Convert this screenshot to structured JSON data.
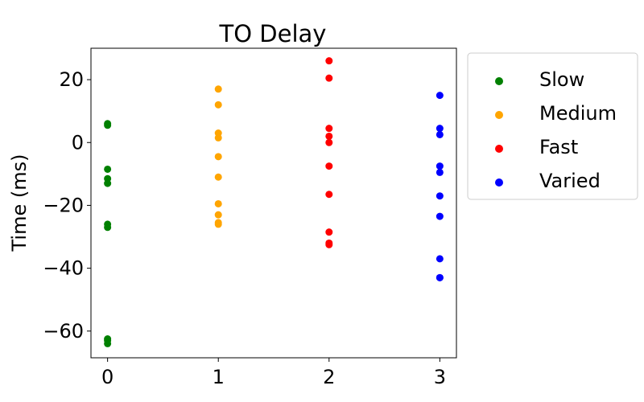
{
  "chart_data": {
    "type": "scatter",
    "title": "TO Delay",
    "xlabel": "",
    "ylabel": "Time (ms)",
    "xlim": [
      -0.15,
      3.15
    ],
    "ylim": [
      -68.5,
      30
    ],
    "xticks": [
      0,
      1,
      2,
      3
    ],
    "yticks": [
      -60,
      -40,
      -20,
      0,
      20
    ],
    "ytick_labels": [
      "−60",
      "−40",
      "−20",
      "0",
      "20"
    ],
    "grid": false,
    "legend_position": "outside-right",
    "series": [
      {
        "name": "Slow",
        "color": "#008000",
        "x": [
          0,
          0,
          0,
          0,
          0,
          0,
          0,
          0,
          0,
          0
        ],
        "y": [
          6,
          5.5,
          -8.5,
          -11.5,
          -13,
          -26,
          -27,
          -62.5,
          -63,
          -64
        ]
      },
      {
        "name": "Medium",
        "color": "#FFA500",
        "x": [
          1,
          1,
          1,
          1,
          1,
          1,
          1,
          1,
          1,
          1
        ],
        "y": [
          17,
          12,
          3,
          1.5,
          -4.5,
          -11,
          -19.5,
          -23,
          -25.5,
          -26
        ]
      },
      {
        "name": "Fast",
        "color": "#FF0000",
        "x": [
          2,
          2,
          2,
          2,
          2,
          2,
          2,
          2,
          2,
          2
        ],
        "y": [
          26,
          20.5,
          4.5,
          2,
          0,
          -7.5,
          -16.5,
          -28.5,
          -32,
          -32.5
        ]
      },
      {
        "name": "Varied",
        "color": "#0000FF",
        "x": [
          3,
          3,
          3,
          3,
          3,
          3,
          3,
          3,
          3,
          3
        ],
        "y": [
          15,
          4.5,
          2.5,
          -7.5,
          -9.5,
          -17,
          -23.5,
          -37,
          -43,
          -43
        ]
      }
    ]
  }
}
